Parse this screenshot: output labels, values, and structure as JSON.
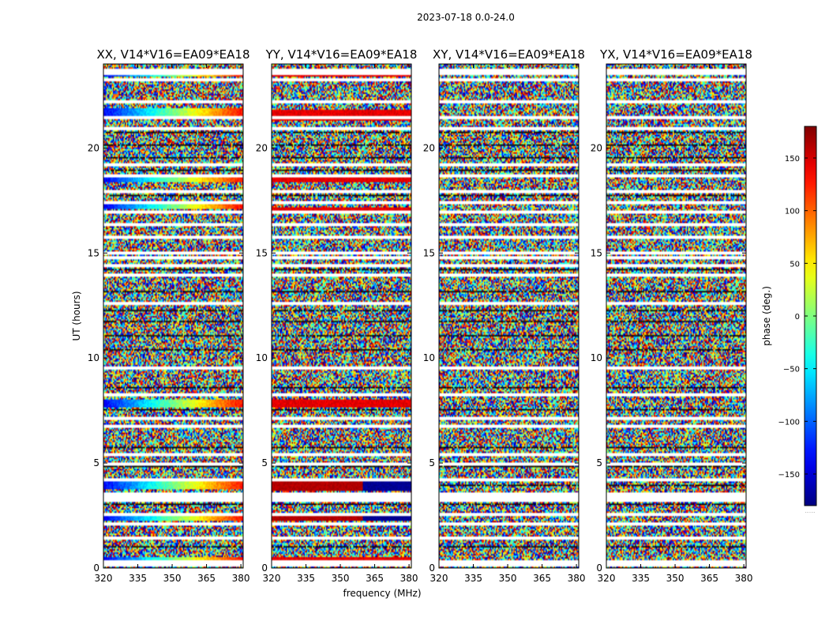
{
  "chart_data": {
    "type": "heatmap",
    "suptitle": "2023-07-18 0.0-24.0",
    "xlabel": "frequency (MHz)",
    "ylabel": "UT (hours)",
    "xlim": [
      320,
      381
    ],
    "ylim": [
      0,
      24
    ],
    "xticks": [
      320,
      335,
      350,
      365,
      380
    ],
    "yticks": [
      0,
      5,
      10,
      15,
      20
    ],
    "colorbar": {
      "label": "phase (deg.)",
      "range": [
        -180,
        180
      ],
      "ticks": [
        150,
        100,
        50,
        0,
        -50,
        -100,
        -150
      ],
      "tick_labels": [
        "150",
        "100",
        "50",
        "0",
        "−50",
        "−100",
        "−150"
      ],
      "colormap": "jet",
      "footer": "......"
    },
    "panels": [
      {
        "title": "XX, V14*V16=EA09*EA18",
        "polarization": "XX",
        "coherent": true
      },
      {
        "title": "YY, V14*V16=EA09*EA18",
        "polarization": "YY",
        "coherent": true
      },
      {
        "title": "XY, V14*V16=EA09*EA18",
        "polarization": "XY",
        "coherent": false
      },
      {
        "title": "YX, V14*V16=EA09*EA18",
        "polarization": "YX",
        "coherent": false
      }
    ],
    "flagged_hours": [
      0.2,
      0.4,
      1.5,
      2.2,
      2.6,
      3.3,
      3.45,
      3.6,
      4.3,
      5.05,
      5.5,
      6.8,
      7.2,
      8.3,
      9.6,
      12.7,
      14.0,
      14.5,
      14.85,
      15.1,
      15.8,
      16.4,
      17.0,
      17.5,
      18.0,
      18.75,
      19.3,
      21.0,
      21.5,
      22.3,
      23.3,
      23.6,
      23.8
    ],
    "dark_hours": [
      1.05,
      3.05,
      4.0,
      4.85,
      5.8,
      7.6,
      8.6,
      10.4,
      11.1,
      11.8,
      12.3,
      13.2,
      14.25,
      17.8,
      19.0,
      19.6,
      20.2,
      20.8
    ],
    "band_hours": {
      "XX": [
        [
          21.6,
          21.9,
          "ramp"
        ],
        [
          23.5,
          23.7,
          "ramp"
        ],
        [
          18.45,
          18.65,
          "ramp"
        ],
        [
          17.2,
          17.35,
          "ramp"
        ],
        [
          7.7,
          8.0,
          "ramp"
        ],
        [
          4.0,
          4.2,
          "ramp"
        ],
        [
          3.8,
          3.95,
          "ramp"
        ],
        [
          2.3,
          2.5,
          "ramp"
        ],
        [
          0.45,
          0.55,
          "ramp"
        ]
      ],
      "YY": [
        [
          21.4,
          21.8,
          "red"
        ],
        [
          23.45,
          23.65,
          "red"
        ],
        [
          18.45,
          18.65,
          "red"
        ],
        [
          17.0,
          17.15,
          "red"
        ],
        [
          7.75,
          8.0,
          "red"
        ],
        [
          4.0,
          4.15,
          "dark"
        ],
        [
          3.75,
          3.9,
          "dark"
        ],
        [
          2.3,
          2.5,
          "dark"
        ],
        [
          0.45,
          0.55,
          "red"
        ]
      ],
      "XY": [],
      "YX": []
    }
  }
}
